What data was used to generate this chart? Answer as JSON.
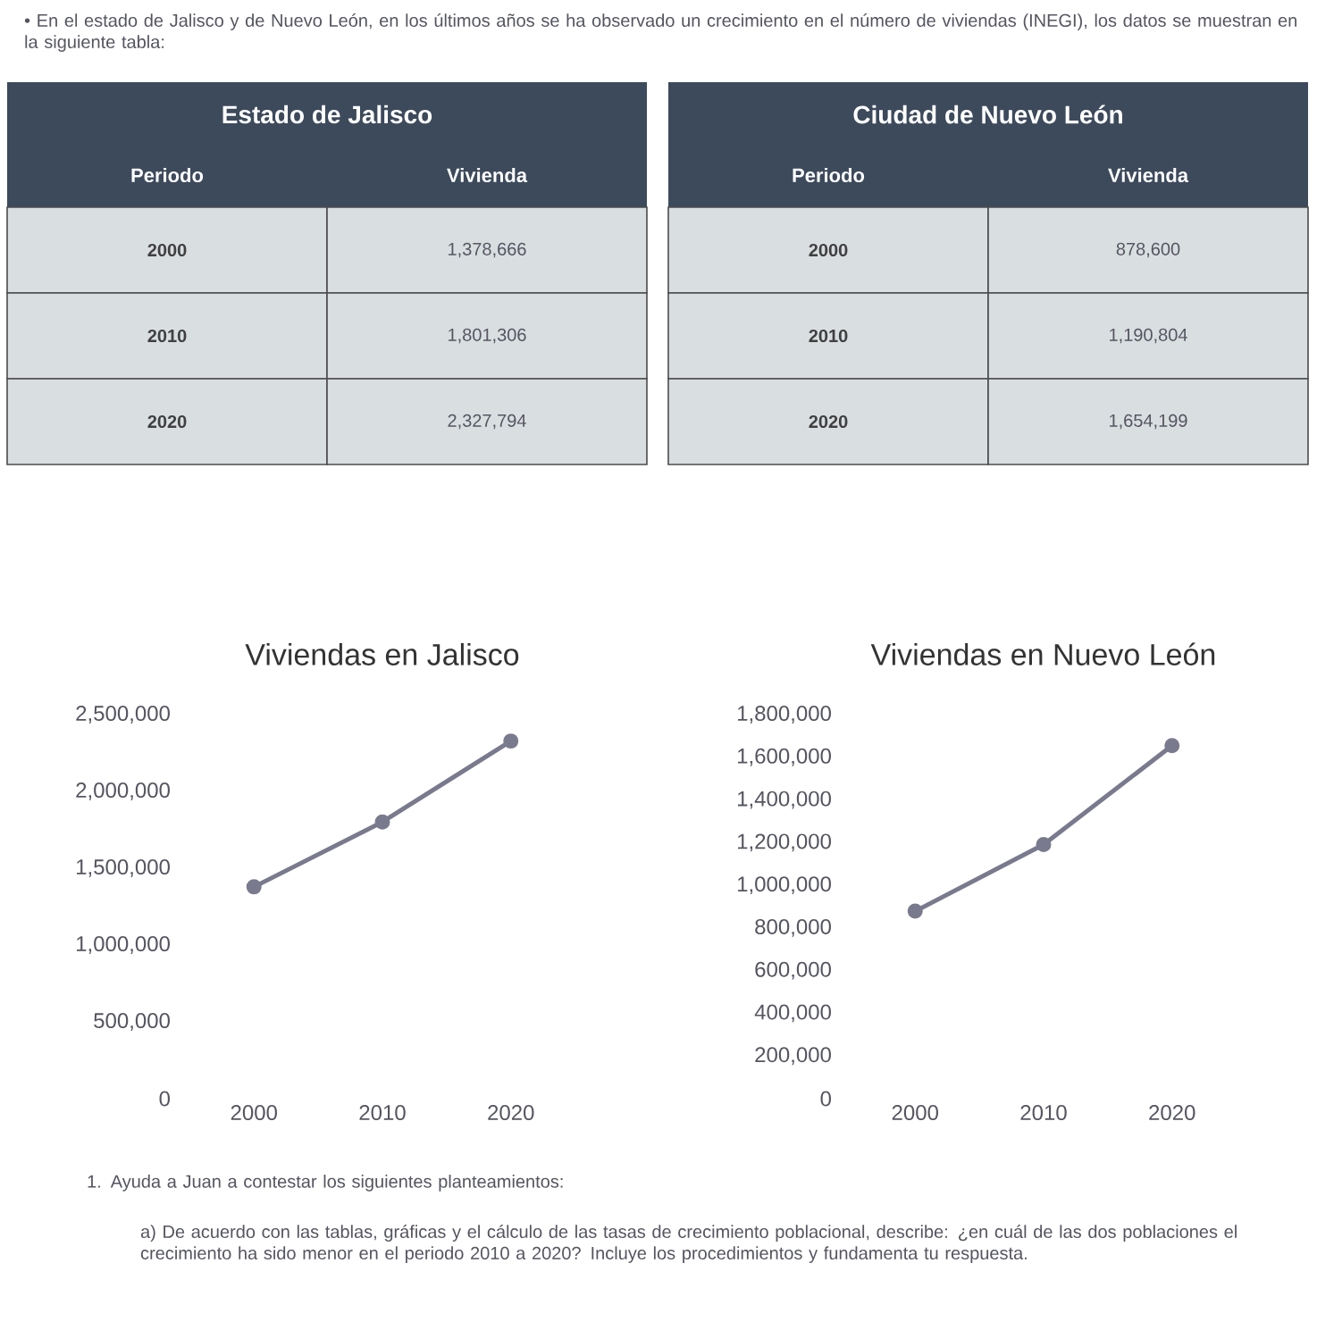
{
  "chart_data": [
    {
      "type": "line",
      "title": "Viviendas en Jalisco",
      "categories": [
        "2000",
        "2010",
        "2020"
      ],
      "values": [
        1378666,
        1801306,
        2327794
      ],
      "color": "#7a7a8e",
      "marker": "circle",
      "line_style": "solid",
      "ylim": [
        0,
        2500000
      ],
      "yticks": [
        {
          "value": 0,
          "label": "0"
        },
        {
          "value": 500000,
          "label": "500,000"
        },
        {
          "value": 1000000,
          "label": "1,000,000"
        },
        {
          "value": 1500000,
          "label": "1,500,000"
        },
        {
          "value": 2000000,
          "label": "2,000,000"
        },
        {
          "value": 2500000,
          "label": "2,500,000"
        }
      ],
      "annotations": [
        "Estado de Jalisco",
        "Periodo",
        "Vivienda",
        "1,378,666",
        "1,801,306",
        "2,327,794",
        "• En el estado de Jalisco y de Nuevo León, en los últimos años se ha observado un crecimiento en el número de viviendas (INEGI), los datos se muestran en la siguiente tabla:",
        "1. Ayuda a Juan a contestar los siguientes planteamientos:",
        "a) De acuerdo con las tablas, gráficas y el cálculo de las tasas de crecimiento poblacional, describe: ¿en cuál de las dos poblaciones el crecimiento ha sido menor en el periodo 2010 a 2020? Incluye los procedimientos y fundamenta tu respuesta."
      ]
    },
    {
      "type": "line",
      "title": "Viviendas en Nuevo León",
      "categories": [
        "2000",
        "2010",
        "2020"
      ],
      "values": [
        878600,
        1190804,
        1654199
      ],
      "color": "#7a7a8e",
      "marker": "circle",
      "line_style": "solid",
      "ylim": [
        0,
        1800000
      ],
      "yticks": [
        {
          "value": 0,
          "label": "0"
        },
        {
          "value": 200000,
          "label": "200,000"
        },
        {
          "value": 400000,
          "label": "400,000"
        },
        {
          "value": 600000,
          "label": "600,000"
        },
        {
          "value": 800000,
          "label": "800,000"
        },
        {
          "value": 1000000,
          "label": "1,000,000"
        },
        {
          "value": 1200000,
          "label": "1,200,000"
        },
        {
          "value": 1400000,
          "label": "1,400,000"
        },
        {
          "value": 1600000,
          "label": "1,600,000"
        },
        {
          "value": 1800000,
          "label": "1,800,000"
        }
      ],
      "annotations": [
        "Ciudad de Nuevo León",
        "Periodo",
        "Vivienda",
        "878,600",
        "1,190,804",
        "1,654,199"
      ]
    }
  ]
}
